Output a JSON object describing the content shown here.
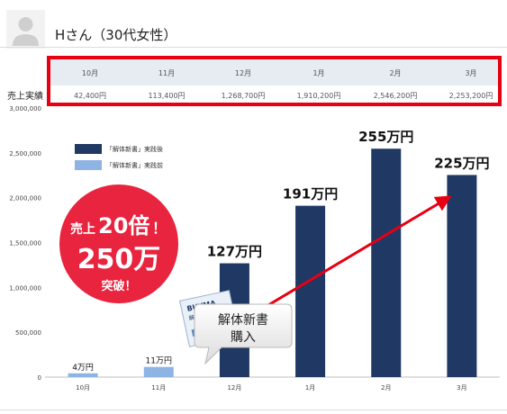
{
  "person": {
    "title": "Hさん（30代女性）"
  },
  "table": {
    "row_label": "売上実績",
    "months": [
      "10月",
      "11月",
      "12月",
      "1月",
      "2月",
      "3月"
    ],
    "values": [
      "42,400円",
      "113,400円",
      "1,268,700円",
      "1,910,200円",
      "2,546,200円",
      "2,253,200円"
    ]
  },
  "badge": {
    "line1_prefix": "売上",
    "line1_num": "20倍",
    "line1_mark": "！",
    "line2": "250万",
    "line3": "突破！"
  },
  "callout": {
    "line1": "解体新書",
    "line2": "購入"
  },
  "book": {
    "title": "BUYMA",
    "subtitle": "解体新書"
  },
  "colors": {
    "bar_after": "#1f3864",
    "bar_before": "#8eb4e3",
    "accent": "#e60012",
    "badge": "#e8243e"
  },
  "chart_data": {
    "type": "bar",
    "categories": [
      "10月",
      "11月",
      "12月",
      "1月",
      "2月",
      "3月"
    ],
    "values": [
      42400,
      113400,
      1268700,
      1910200,
      2546200,
      2253200
    ],
    "bar_groups": [
      "before",
      "before",
      "after",
      "after",
      "after",
      "after"
    ],
    "data_labels": [
      "4万円",
      "11万円",
      "127万円",
      "191万円",
      "255万円",
      "225万円"
    ],
    "yticks": [
      0,
      500000,
      1000000,
      1500000,
      2000000,
      2500000,
      3000000
    ],
    "ytick_labels": [
      "0",
      "500,000",
      "1,000,000",
      "1,500,000",
      "2,000,000",
      "2,500,000",
      "3,000,000"
    ],
    "ylim": [
      0,
      3000000
    ],
    "legend": [
      {
        "label": "「解体新書」実践後",
        "color": "#1f3864"
      },
      {
        "label": "「解体新書」実践前",
        "color": "#8eb4e3"
      }
    ],
    "legend_position": "top-left",
    "grid": false
  }
}
